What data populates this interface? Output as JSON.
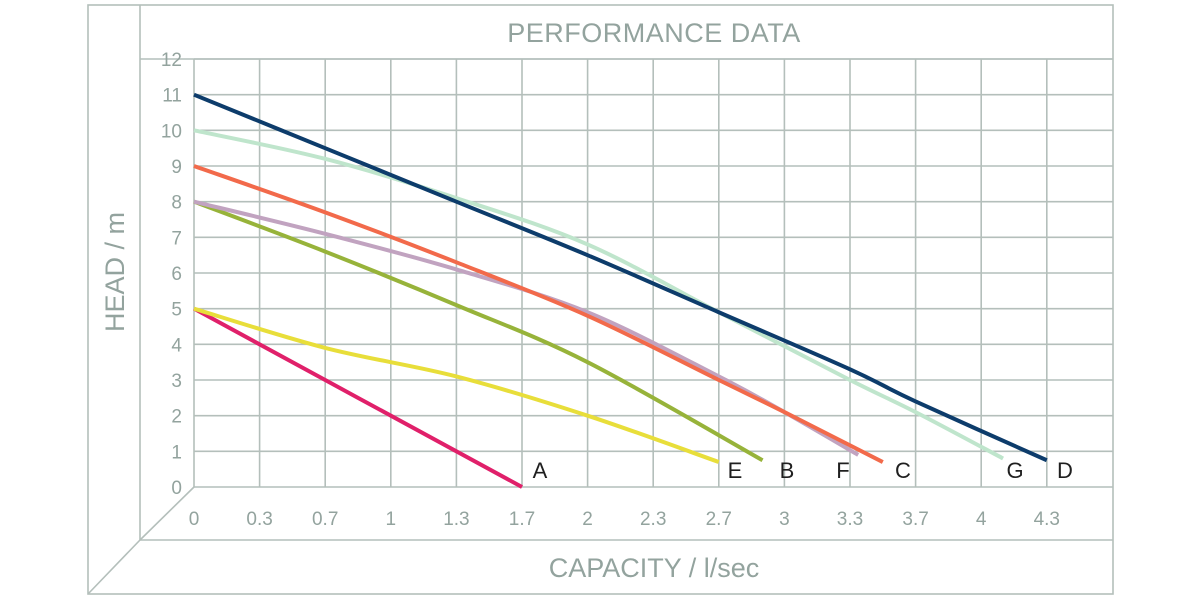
{
  "chart_data": {
    "type": "line",
    "title": "PERFORMANCE DATA",
    "xlabel": "CAPACITY / l/sec",
    "ylabel": "HEAD / m",
    "x_ticks": [
      "0",
      "0.3",
      "0.7",
      "1",
      "1.3",
      "1.7",
      "2",
      "2.3",
      "2.7",
      "3",
      "3.3",
      "3.7",
      "4",
      "4.3"
    ],
    "y_ticks": [
      "0",
      "1",
      "2",
      "3",
      "4",
      "5",
      "6",
      "7",
      "8",
      "9",
      "10",
      "11",
      "12"
    ],
    "xlim": [
      0,
      4.55
    ],
    "ylim": [
      0,
      12
    ],
    "grid": true,
    "legend_position": "curve-end labels",
    "series": [
      {
        "name": "A",
        "color": "#e0206a",
        "points": [
          [
            0,
            5
          ],
          [
            1.7,
            0
          ]
        ]
      },
      {
        "name": "E",
        "color": "#e8de3a",
        "points": [
          [
            0,
            5
          ],
          [
            0.7,
            3.9
          ],
          [
            1.3,
            3.1
          ],
          [
            2.0,
            2.0
          ],
          [
            2.7,
            0.7
          ]
        ]
      },
      {
        "name": "B",
        "color": "#97b33a",
        "points": [
          [
            0,
            8
          ],
          [
            0.7,
            6.6
          ],
          [
            1.3,
            5.1
          ],
          [
            2.0,
            3.5
          ],
          [
            2.9,
            0.75
          ]
        ]
      },
      {
        "name": "F",
        "color": "#c1a3c0",
        "points": [
          [
            0,
            8
          ],
          [
            0.7,
            7.1
          ],
          [
            1.3,
            6.1
          ],
          [
            2.0,
            4.9
          ],
          [
            2.7,
            3.1
          ],
          [
            3.0,
            2.1
          ],
          [
            3.35,
            0.9
          ]
        ]
      },
      {
        "name": "C",
        "color": "#f26a4b",
        "points": [
          [
            0,
            9
          ],
          [
            0.7,
            7.7
          ],
          [
            1.3,
            6.3
          ],
          [
            2.0,
            4.8
          ],
          [
            2.7,
            3.0
          ],
          [
            3.0,
            2.1
          ],
          [
            3.5,
            0.7
          ]
        ]
      },
      {
        "name": "G",
        "color": "#bfe5cc",
        "points": [
          [
            0,
            10
          ],
          [
            0.7,
            9.2
          ],
          [
            1.3,
            8.1
          ],
          [
            2.0,
            6.8
          ],
          [
            2.7,
            4.9
          ],
          [
            3.3,
            3.0
          ],
          [
            3.7,
            2.1
          ],
          [
            4.1,
            0.8
          ]
        ]
      },
      {
        "name": "D",
        "color": "#0d3c6b",
        "points": [
          [
            0,
            11
          ],
          [
            0.7,
            9.5
          ],
          [
            1.3,
            8.0
          ],
          [
            2.0,
            6.5
          ],
          [
            2.7,
            4.9
          ],
          [
            3.3,
            3.3
          ],
          [
            3.7,
            2.4
          ],
          [
            4.3,
            0.75
          ]
        ]
      }
    ],
    "label_order": [
      "A",
      "E",
      "B",
      "F",
      "C",
      "G",
      "D"
    ]
  },
  "colors": {
    "grid": "#b4bfbb",
    "text_axis": "#93a39e",
    "text_label": "#1f1f1f"
  }
}
